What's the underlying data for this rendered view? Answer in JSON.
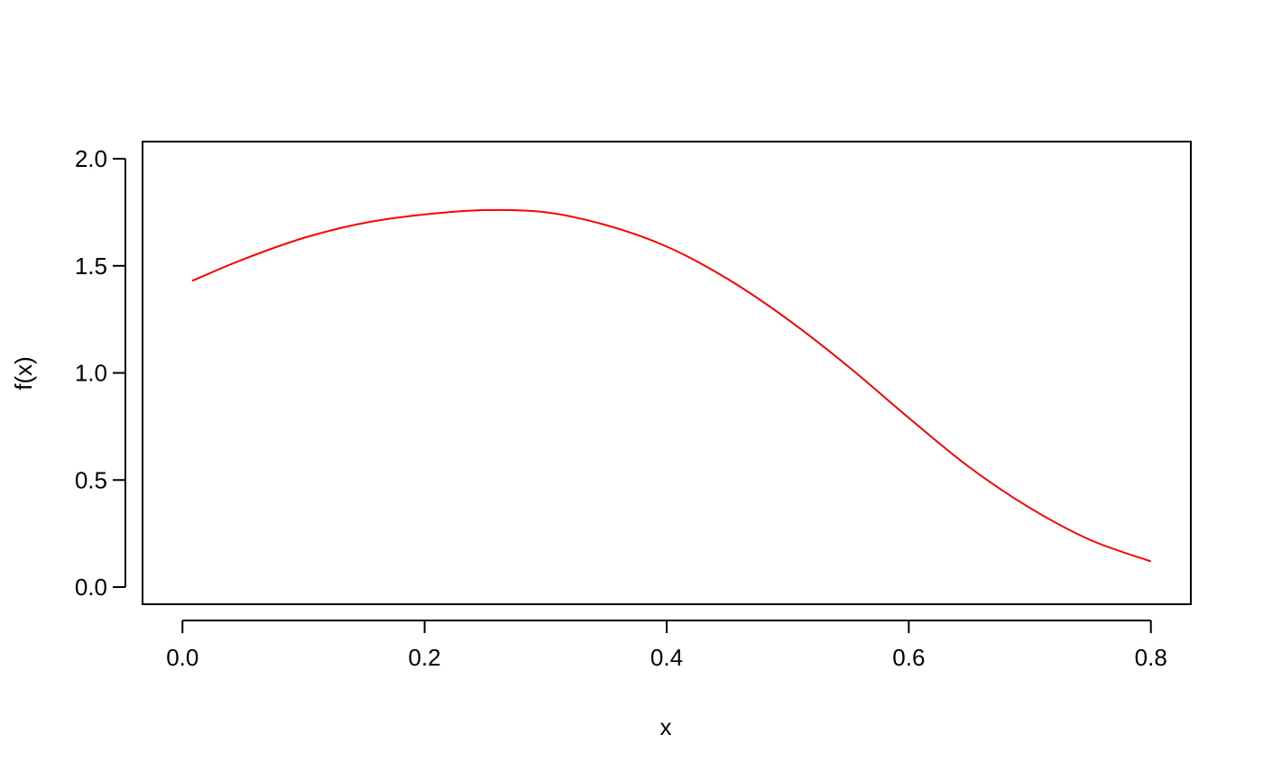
{
  "chart_data": {
    "type": "line",
    "title": "",
    "xlabel": "x",
    "ylabel": "f(x)",
    "xlim": [
      -0.033,
      0.833
    ],
    "ylim": [
      -0.08,
      2.08
    ],
    "x_ticks": [
      0.0,
      0.2,
      0.4,
      0.6,
      0.8
    ],
    "x_tick_labels": [
      "0.0",
      "0.2",
      "0.4",
      "0.6",
      "0.8"
    ],
    "y_ticks": [
      0.0,
      0.5,
      1.0,
      1.5,
      2.0
    ],
    "y_tick_labels": [
      "0.0",
      "0.5",
      "1.0",
      "1.5",
      "2.0"
    ],
    "grid": false,
    "box": true,
    "series": [
      {
        "color": "#ff0000",
        "x": [
          0.008,
          0.05,
          0.1,
          0.15,
          0.2,
          0.25,
          0.3,
          0.35,
          0.4,
          0.45,
          0.5,
          0.55,
          0.6,
          0.65,
          0.7,
          0.75,
          0.8
        ],
        "y": [
          1.43,
          1.53,
          1.63,
          1.7,
          1.74,
          1.76,
          1.75,
          1.69,
          1.59,
          1.44,
          1.25,
          1.03,
          0.79,
          0.56,
          0.37,
          0.22,
          0.12
        ]
      }
    ]
  }
}
